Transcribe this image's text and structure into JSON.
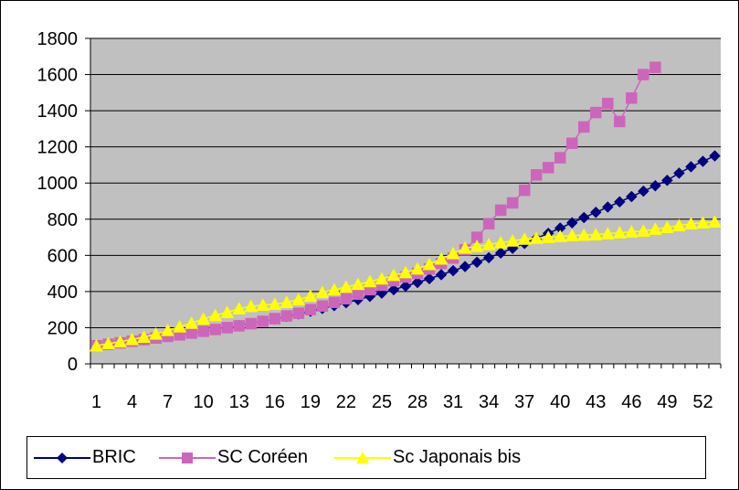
{
  "chart_data": {
    "type": "line",
    "title": "",
    "xlabel": "",
    "ylabel": "",
    "ylim": [
      0,
      1800
    ],
    "yticks": [
      0,
      200,
      400,
      600,
      800,
      1000,
      1200,
      1400,
      1600,
      1800
    ],
    "xticks": [
      1,
      4,
      7,
      10,
      13,
      16,
      19,
      22,
      25,
      28,
      31,
      34,
      37,
      40,
      43,
      46,
      49,
      52
    ],
    "x_count": 53,
    "grid": "horizontal",
    "legend_position": "bottom",
    "plot_background": "#c0c0c0",
    "series": [
      {
        "name": "BRIC",
        "color": "#000080",
        "marker": "diamond",
        "values": [
          100,
          108,
          116,
          124,
          133,
          142,
          151,
          160,
          170,
          180,
          190,
          201,
          212,
          223,
          235,
          248,
          262,
          276,
          291,
          306,
          322,
          338,
          355,
          373,
          391,
          410,
          430,
          450,
          471,
          493,
          515,
          538,
          562,
          587,
          613,
          639,
          666,
          694,
          722,
          751,
          780,
          809,
          838,
          867,
          896,
          925,
          955,
          985,
          1015,
          1055,
          1090,
          1120,
          1150
        ]
      },
      {
        "name": "SC Coréen",
        "color": "#cc66bb",
        "marker": "square",
        "values": [
          100,
          108,
          116,
          125,
          134,
          143,
          152,
          160,
          170,
          180,
          190,
          200,
          210,
          222,
          235,
          250,
          265,
          280,
          300,
          320,
          340,
          360,
          385,
          410,
          435,
          460,
          480,
          500,
          525,
          555,
          585,
          630,
          700,
          775,
          850,
          890,
          960,
          1045,
          1085,
          1140,
          1220,
          1310,
          1390,
          1440,
          1340,
          1470,
          1600,
          1640
        ]
      },
      {
        "name": "Sc Japonais bis",
        "color": "#ffff00",
        "marker": "triangle",
        "values": [
          100,
          112,
          122,
          135,
          148,
          165,
          185,
          205,
          225,
          248,
          268,
          285,
          305,
          318,
          325,
          330,
          340,
          355,
          375,
          395,
          410,
          425,
          440,
          455,
          470,
          490,
          505,
          525,
          550,
          580,
          610,
          640,
          650,
          660,
          670,
          680,
          690,
          695,
          700,
          705,
          710,
          712,
          715,
          720,
          725,
          730,
          735,
          745,
          755,
          765,
          775,
          780,
          785
        ]
      }
    ]
  }
}
